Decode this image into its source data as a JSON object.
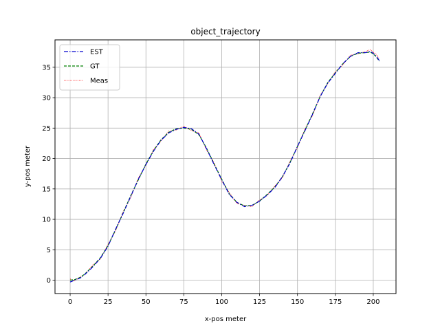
{
  "chart_data": {
    "type": "line",
    "title": "object_trajectory",
    "xlabel": "x-pos meter",
    "ylabel": "y-pos meter",
    "xlim": [
      -10,
      215
    ],
    "ylim": [
      -2.2,
      39.5
    ],
    "xticks": [
      0,
      25,
      50,
      75,
      100,
      125,
      150,
      175,
      200
    ],
    "yticks": [
      0,
      5,
      10,
      15,
      20,
      25,
      30,
      35
    ],
    "grid": true,
    "legend_position": "upper-left",
    "series": [
      {
        "name": "EST",
        "color": "#0000cc",
        "style": "dash-dot",
        "x": [
          0,
          3,
          7,
          10,
          15,
          20,
          25,
          30,
          35,
          40,
          45,
          50,
          55,
          60,
          65,
          70,
          75,
          80,
          85,
          90,
          95,
          100,
          105,
          110,
          115,
          120,
          125,
          130,
          135,
          140,
          145,
          150,
          155,
          160,
          165,
          170,
          175,
          180,
          185,
          190,
          195,
          198,
          200,
          202,
          204
        ],
        "y": [
          -0.3,
          0.0,
          0.4,
          1.0,
          2.2,
          3.6,
          5.6,
          8.4,
          11.0,
          13.8,
          16.6,
          19.0,
          21.2,
          23.0,
          24.2,
          24.8,
          25.1,
          24.9,
          24.0,
          21.6,
          19.0,
          16.5,
          14.1,
          12.8,
          12.1,
          12.3,
          13.0,
          14.0,
          15.2,
          17.0,
          19.2,
          22.0,
          24.6,
          27.3,
          30.2,
          32.4,
          34.0,
          35.6,
          36.8,
          37.4,
          37.4,
          37.6,
          37.3,
          36.8,
          36.1
        ]
      },
      {
        "name": "GT",
        "color": "#008000",
        "style": "dashed",
        "x": [
          0,
          3,
          7,
          10,
          15,
          20,
          25,
          30,
          35,
          40,
          45,
          50,
          55,
          60,
          65,
          70,
          75,
          80,
          85,
          90,
          95,
          100,
          105,
          110,
          115,
          120,
          125,
          130,
          135,
          140,
          145,
          150,
          155,
          160,
          165,
          170,
          175,
          180,
          185,
          190,
          195,
          198,
          200,
          202,
          204
        ],
        "y": [
          0.0,
          0.1,
          0.5,
          1.1,
          2.3,
          3.7,
          5.7,
          8.3,
          11.1,
          13.9,
          16.5,
          19.1,
          21.3,
          23.1,
          24.3,
          24.9,
          25.0,
          24.8,
          23.9,
          21.7,
          19.1,
          16.6,
          14.2,
          12.8,
          12.2,
          12.3,
          13.0,
          14.1,
          15.3,
          17.0,
          19.3,
          22.0,
          24.7,
          27.4,
          30.2,
          32.5,
          34.1,
          35.6,
          36.8,
          37.3,
          37.4,
          37.5,
          37.2,
          36.7,
          36.0
        ]
      },
      {
        "name": "Meas",
        "color": "#ff0000",
        "style": "dotted",
        "x": [
          0,
          3,
          7,
          10,
          15,
          20,
          25,
          30,
          35,
          40,
          45,
          50,
          55,
          60,
          65,
          70,
          75,
          80,
          85,
          90,
          95,
          100,
          105,
          110,
          115,
          120,
          125,
          130,
          135,
          140,
          145,
          150,
          155,
          160,
          165,
          170,
          175,
          180,
          185,
          190,
          195,
          198,
          200,
          202,
          204
        ],
        "y": [
          0.2,
          -0.1,
          0.6,
          1.0,
          2.5,
          3.5,
          5.9,
          8.1,
          11.3,
          13.6,
          16.8,
          18.9,
          21.5,
          22.9,
          24.5,
          24.7,
          25.3,
          24.6,
          24.2,
          21.4,
          19.3,
          16.3,
          14.4,
          12.6,
          12.3,
          12.1,
          13.2,
          13.9,
          15.5,
          16.8,
          19.5,
          21.8,
          24.9,
          27.1,
          30.4,
          32.3,
          34.3,
          35.4,
          37.0,
          37.2,
          37.6,
          37.9,
          37.5,
          37.1,
          36.4
        ]
      }
    ]
  }
}
